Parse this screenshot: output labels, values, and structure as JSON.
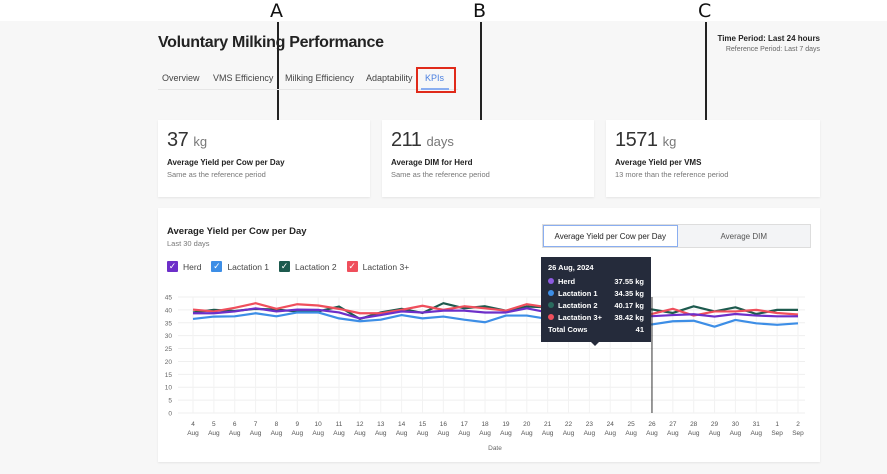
{
  "annotations": [
    "A",
    "B",
    "C"
  ],
  "header": {
    "title": "Voluntary Milking Performance",
    "time_period": "Time Period: Last 24 hours",
    "reference_period": "Reference Period: Last 7 days"
  },
  "tabs": [
    {
      "label": "Overview"
    },
    {
      "label": "VMS Efficiency"
    },
    {
      "label": "Milking Efficiency"
    },
    {
      "label": "Adaptability"
    },
    {
      "label": "KPIs",
      "active": true
    }
  ],
  "kpis": [
    {
      "value": "37",
      "unit": "kg",
      "label": "Average Yield per Cow per Day",
      "sub": "Same as the reference period"
    },
    {
      "value": "211",
      "unit": "days",
      "label": "Average DIM for Herd",
      "sub": "Same as the reference period"
    },
    {
      "value": "1571",
      "unit": "kg",
      "label": "Average Yield per VMS",
      "sub": "13 more than the reference period"
    }
  ],
  "chart_panel": {
    "title": "Average Yield per Cow per Day",
    "subtitle": "Last 30 days",
    "toggle": [
      "Average Yield per Cow per Day",
      "Average DIM"
    ]
  },
  "tooltip": {
    "date": "26 Aug, 2024",
    "rows": [
      {
        "name": "Herd",
        "value": "37.55 kg"
      },
      {
        "name": "Lactation 1",
        "value": "34.35 kg"
      },
      {
        "name": "Lactation 2",
        "value": "40.17 kg"
      },
      {
        "name": "Lactation 3+",
        "value": "38.42 kg"
      }
    ],
    "total_label": "Total Cows",
    "total": "41"
  },
  "chart_data": {
    "type": "line",
    "xlabel": "Date",
    "ylabel": "",
    "ylim": [
      0,
      45
    ],
    "yticks": [
      0,
      5,
      10,
      15,
      20,
      25,
      30,
      35,
      40,
      45
    ],
    "grid": true,
    "legend": "top-left",
    "categories": [
      [
        "4",
        "Aug"
      ],
      [
        "5",
        "Aug"
      ],
      [
        "6",
        "Aug"
      ],
      [
        "7",
        "Aug"
      ],
      [
        "8",
        "Aug"
      ],
      [
        "9",
        "Aug"
      ],
      [
        "10",
        "Aug"
      ],
      [
        "11",
        "Aug"
      ],
      [
        "12",
        "Aug"
      ],
      [
        "13",
        "Aug"
      ],
      [
        "14",
        "Aug"
      ],
      [
        "15",
        "Aug"
      ],
      [
        "16",
        "Aug"
      ],
      [
        "17",
        "Aug"
      ],
      [
        "18",
        "Aug"
      ],
      [
        "19",
        "Aug"
      ],
      [
        "20",
        "Aug"
      ],
      [
        "21",
        "Aug"
      ],
      [
        "22",
        "Aug"
      ],
      [
        "23",
        "Aug"
      ],
      [
        "24",
        "Aug"
      ],
      [
        "25",
        "Aug"
      ],
      [
        "26",
        "Aug"
      ],
      [
        "27",
        "Aug"
      ],
      [
        "28",
        "Aug"
      ],
      [
        "29",
        "Aug"
      ],
      [
        "30",
        "Aug"
      ],
      [
        "31",
        "Aug"
      ],
      [
        "1",
        "Sep"
      ],
      [
        "2",
        "Sep"
      ]
    ],
    "highlight_index": 22,
    "series": [
      {
        "name": "Herd",
        "color": "#6d2fc9",
        "values": [
          38.7,
          38.7,
          39.4,
          40.6,
          39.4,
          40.1,
          40,
          39,
          36.7,
          38,
          39.4,
          39,
          39.7,
          39.7,
          39,
          39,
          40.6,
          39,
          39,
          38.5,
          38,
          38,
          37.55,
          38,
          38.3,
          37.4,
          38.4,
          37.8,
          37.5,
          37.5
        ]
      },
      {
        "name": "Lactation 1",
        "color": "#3d8ee6",
        "values": [
          36.5,
          37.4,
          37.5,
          38.7,
          37.5,
          39,
          39,
          36.7,
          35.6,
          36.2,
          38,
          36.7,
          37.4,
          36.2,
          35.2,
          37.8,
          37.8,
          36.5,
          35.5,
          35,
          35,
          35,
          34.35,
          35.6,
          35.8,
          33.5,
          36.1,
          34.8,
          34.2,
          34.8
        ]
      },
      {
        "name": "Lactation 2",
        "color": "#1d5a4e",
        "values": [
          39,
          40,
          39.6,
          40.4,
          40.1,
          39.4,
          39.4,
          41.3,
          36.5,
          39,
          40.4,
          38.8,
          42.6,
          40.6,
          41.4,
          39.7,
          41.3,
          41,
          40.5,
          40,
          40,
          40.5,
          40.17,
          38.8,
          41.4,
          39.4,
          41,
          38.4,
          40,
          40
        ]
      },
      {
        "name": "Lactation 3+",
        "color": "#ef4f5c",
        "values": [
          40.1,
          39.4,
          40.8,
          42.6,
          40.4,
          42.2,
          41.7,
          40.4,
          38.7,
          38.7,
          40,
          41.6,
          40,
          41.4,
          40.6,
          39.7,
          42.2,
          41,
          40,
          40,
          39.5,
          39,
          38.42,
          40.4,
          37.8,
          39.4,
          39.4,
          40,
          38.8,
          38.2
        ]
      }
    ]
  }
}
